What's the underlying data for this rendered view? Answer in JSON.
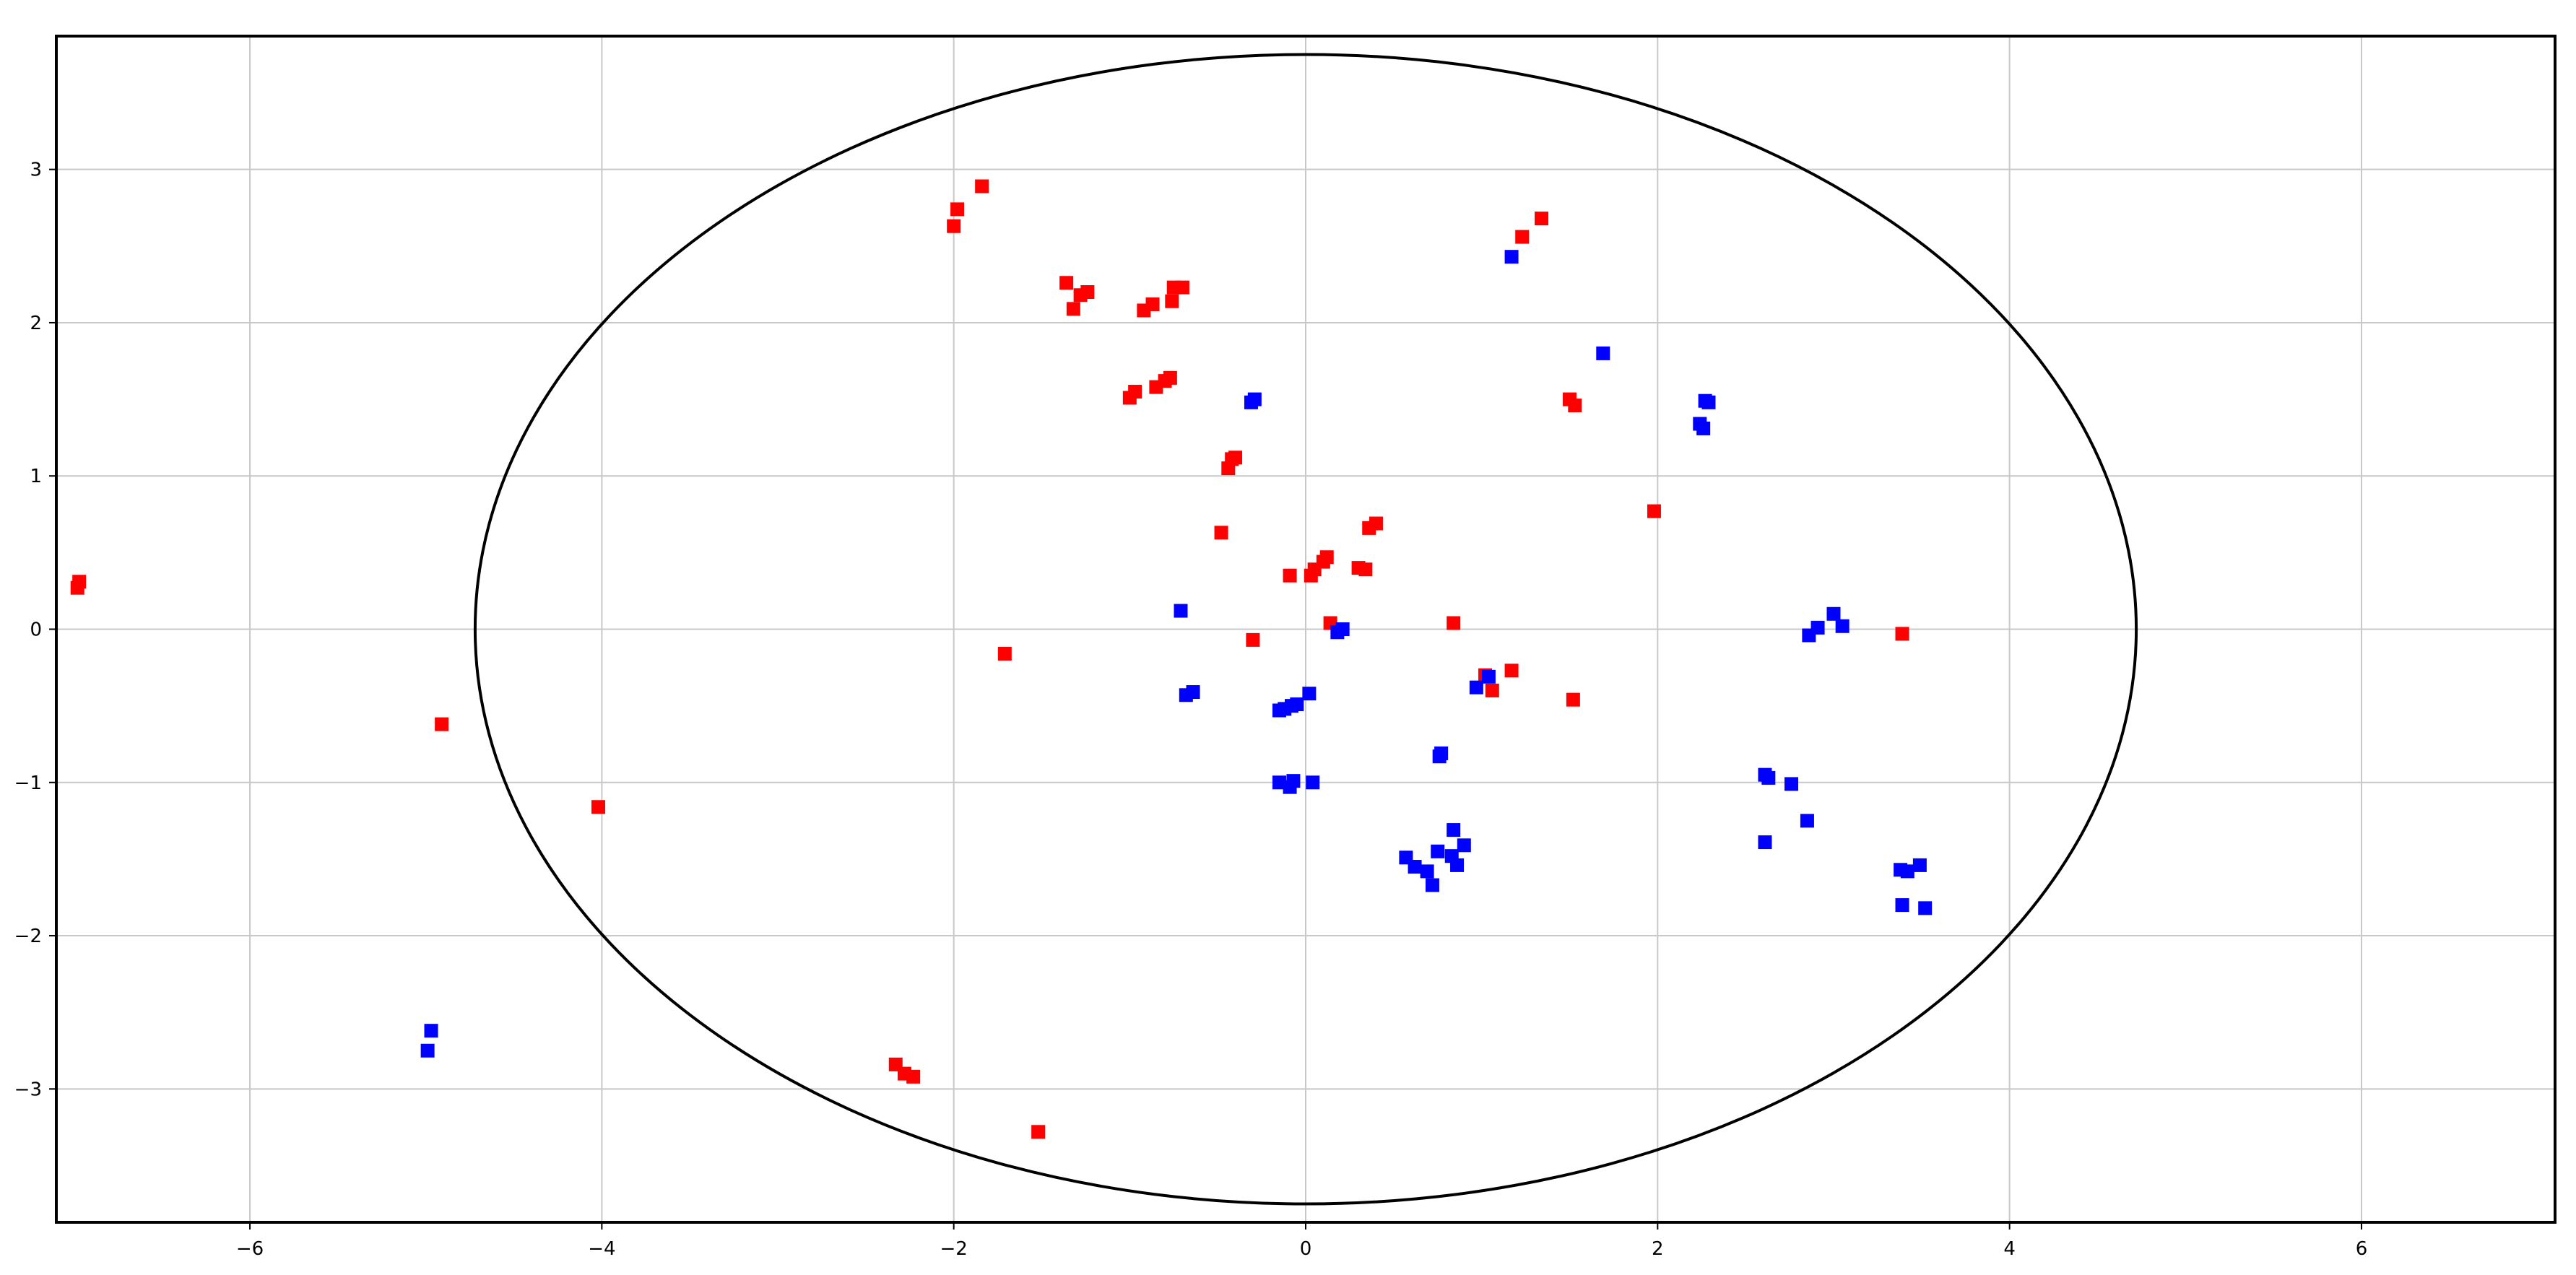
{
  "chart_data": {
    "type": "scatter",
    "title": "",
    "xlabel": "",
    "ylabel": "",
    "xlim": [
      -7.1,
      7.1
    ],
    "ylim": [
      -3.87,
      3.87
    ],
    "grid": true,
    "x_ticks": [
      -6,
      -4,
      -2,
      0,
      2,
      4,
      6
    ],
    "y_ticks": [
      -3,
      -2,
      -1,
      0,
      1,
      2,
      3
    ],
    "x_tick_labels": [
      "−6",
      "−4",
      "−2",
      "0",
      "2",
      "4",
      "6"
    ],
    "y_tick_labels": [
      "−3",
      "−2",
      "−1",
      "0",
      "1",
      "2",
      "3"
    ],
    "ellipse": {
      "cx": 0,
      "cy": 0,
      "rx": 4.72,
      "ry": 3.75
    },
    "series": [
      {
        "color": "#ff0000",
        "marker": "square",
        "points": [
          [
            -6.98,
            0.27
          ],
          [
            -6.97,
            0.31
          ],
          [
            -4.91,
            -0.62
          ],
          [
            -4.02,
            -1.16
          ],
          [
            -2.33,
            -2.84
          ],
          [
            -2.28,
            -2.9
          ],
          [
            -2.23,
            -2.92
          ],
          [
            -1.52,
            -3.28
          ],
          [
            -1.71,
            -0.16
          ],
          [
            -2.0,
            2.63
          ],
          [
            -1.98,
            2.74
          ],
          [
            -1.84,
            2.89
          ],
          [
            -1.36,
            2.26
          ],
          [
            -1.32,
            2.09
          ],
          [
            -1.28,
            2.18
          ],
          [
            -1.24,
            2.2
          ],
          [
            -0.92,
            2.08
          ],
          [
            -0.87,
            2.12
          ],
          [
            -0.76,
            2.14
          ],
          [
            -0.75,
            2.23
          ],
          [
            -0.7,
            2.23
          ],
          [
            -1.0,
            1.51
          ],
          [
            -0.97,
            1.55
          ],
          [
            -0.85,
            1.58
          ],
          [
            -0.8,
            1.62
          ],
          [
            -0.77,
            1.64
          ],
          [
            -0.44,
            1.05
          ],
          [
            -0.42,
            1.11
          ],
          [
            -0.4,
            1.12
          ],
          [
            -0.48,
            0.63
          ],
          [
            -0.3,
            -0.07
          ],
          [
            -0.09,
            0.35
          ],
          [
            0.03,
            0.35
          ],
          [
            0.05,
            0.39
          ],
          [
            0.1,
            0.44
          ],
          [
            0.12,
            0.47
          ],
          [
            0.14,
            0.04
          ],
          [
            0.3,
            0.4
          ],
          [
            0.34,
            0.39
          ],
          [
            0.36,
            0.66
          ],
          [
            0.4,
            0.69
          ],
          [
            0.84,
            0.04
          ],
          [
            1.02,
            -0.3
          ],
          [
            1.06,
            -0.4
          ],
          [
            1.17,
            -0.27
          ],
          [
            1.5,
            1.5
          ],
          [
            1.53,
            1.46
          ],
          [
            1.52,
            -0.46
          ],
          [
            1.23,
            2.56
          ],
          [
            1.34,
            2.68
          ],
          [
            1.98,
            0.77
          ],
          [
            3.39,
            -0.03
          ]
        ]
      },
      {
        "color": "#0000ff",
        "marker": "square",
        "points": [
          [
            -4.97,
            -2.62
          ],
          [
            -4.99,
            -2.75
          ],
          [
            -0.71,
            0.12
          ],
          [
            -0.68,
            -0.43
          ],
          [
            -0.64,
            -0.41
          ],
          [
            -0.31,
            1.48
          ],
          [
            -0.29,
            1.5
          ],
          [
            -0.15,
            -0.53
          ],
          [
            -0.12,
            -0.52
          ],
          [
            -0.08,
            -0.5
          ],
          [
            -0.05,
            -0.49
          ],
          [
            0.02,
            -0.42
          ],
          [
            -0.15,
            -1.0
          ],
          [
            -0.09,
            -1.03
          ],
          [
            -0.07,
            -0.99
          ],
          [
            0.04,
            -1.0
          ],
          [
            0.18,
            -0.02
          ],
          [
            0.21,
            0.0
          ],
          [
            0.57,
            -1.49
          ],
          [
            0.62,
            -1.55
          ],
          [
            0.69,
            -1.58
          ],
          [
            0.72,
            -1.67
          ],
          [
            0.75,
            -1.45
          ],
          [
            0.76,
            -0.83
          ],
          [
            0.77,
            -0.81
          ],
          [
            0.83,
            -1.48
          ],
          [
            0.84,
            -1.31
          ],
          [
            0.86,
            -1.54
          ],
          [
            0.9,
            -1.41
          ],
          [
            0.97,
            -0.38
          ],
          [
            1.04,
            -0.31
          ],
          [
            1.17,
            2.43
          ],
          [
            1.69,
            1.8
          ],
          [
            2.24,
            1.34
          ],
          [
            2.26,
            1.31
          ],
          [
            2.27,
            1.49
          ],
          [
            2.29,
            1.48
          ],
          [
            2.61,
            -0.95
          ],
          [
            2.63,
            -0.97
          ],
          [
            2.61,
            -1.39
          ],
          [
            2.76,
            -1.01
          ],
          [
            2.85,
            -1.25
          ],
          [
            2.86,
            -0.04
          ],
          [
            2.91,
            0.01
          ],
          [
            3.0,
            0.1
          ],
          [
            3.05,
            0.02
          ],
          [
            3.38,
            -1.57
          ],
          [
            3.42,
            -1.58
          ],
          [
            3.49,
            -1.54
          ],
          [
            3.39,
            -1.8
          ],
          [
            3.52,
            -1.82
          ]
        ]
      }
    ]
  }
}
